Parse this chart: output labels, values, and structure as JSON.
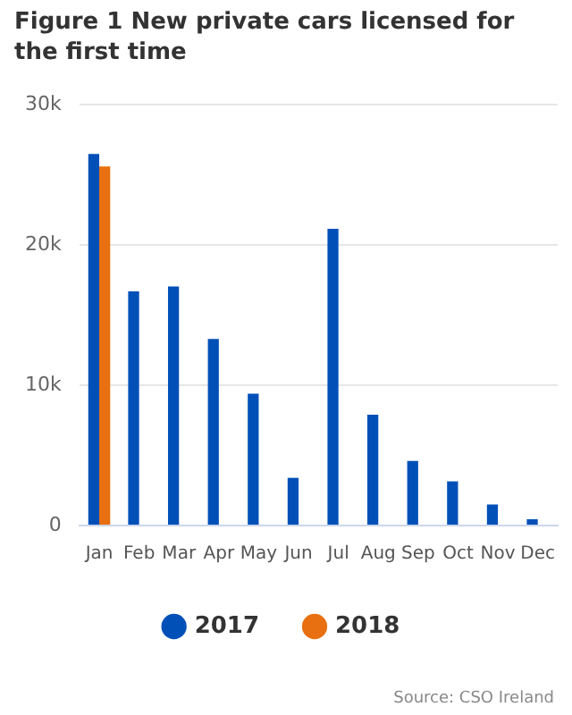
{
  "chart_data": {
    "type": "bar",
    "title": "Figure 1 New private cars licensed for the first time",
    "categories": [
      "Jan",
      "Feb",
      "Mar",
      "Apr",
      "May",
      "Jun",
      "Jul",
      "Aug",
      "Sep",
      "Oct",
      "Nov",
      "Dec"
    ],
    "series": [
      {
        "name": "2017",
        "color": "#0050b8",
        "values": [
          26500,
          16700,
          17050,
          13300,
          9400,
          3400,
          21150,
          7900,
          4600,
          3150,
          1500,
          450
        ]
      },
      {
        "name": "2018",
        "color": "#e87010",
        "values": [
          25600,
          null,
          null,
          null,
          null,
          null,
          null,
          null,
          null,
          null,
          null,
          null
        ]
      }
    ],
    "ylim": [
      0,
      30000
    ],
    "yticks": [
      {
        "value": 0,
        "label": "0"
      },
      {
        "value": 10000,
        "label": "10k"
      },
      {
        "value": 20000,
        "label": "20k"
      },
      {
        "value": 30000,
        "label": "30k"
      }
    ],
    "grid": "y",
    "legend": "bottom",
    "annotations": [
      "Source: CSO Ireland"
    ]
  }
}
